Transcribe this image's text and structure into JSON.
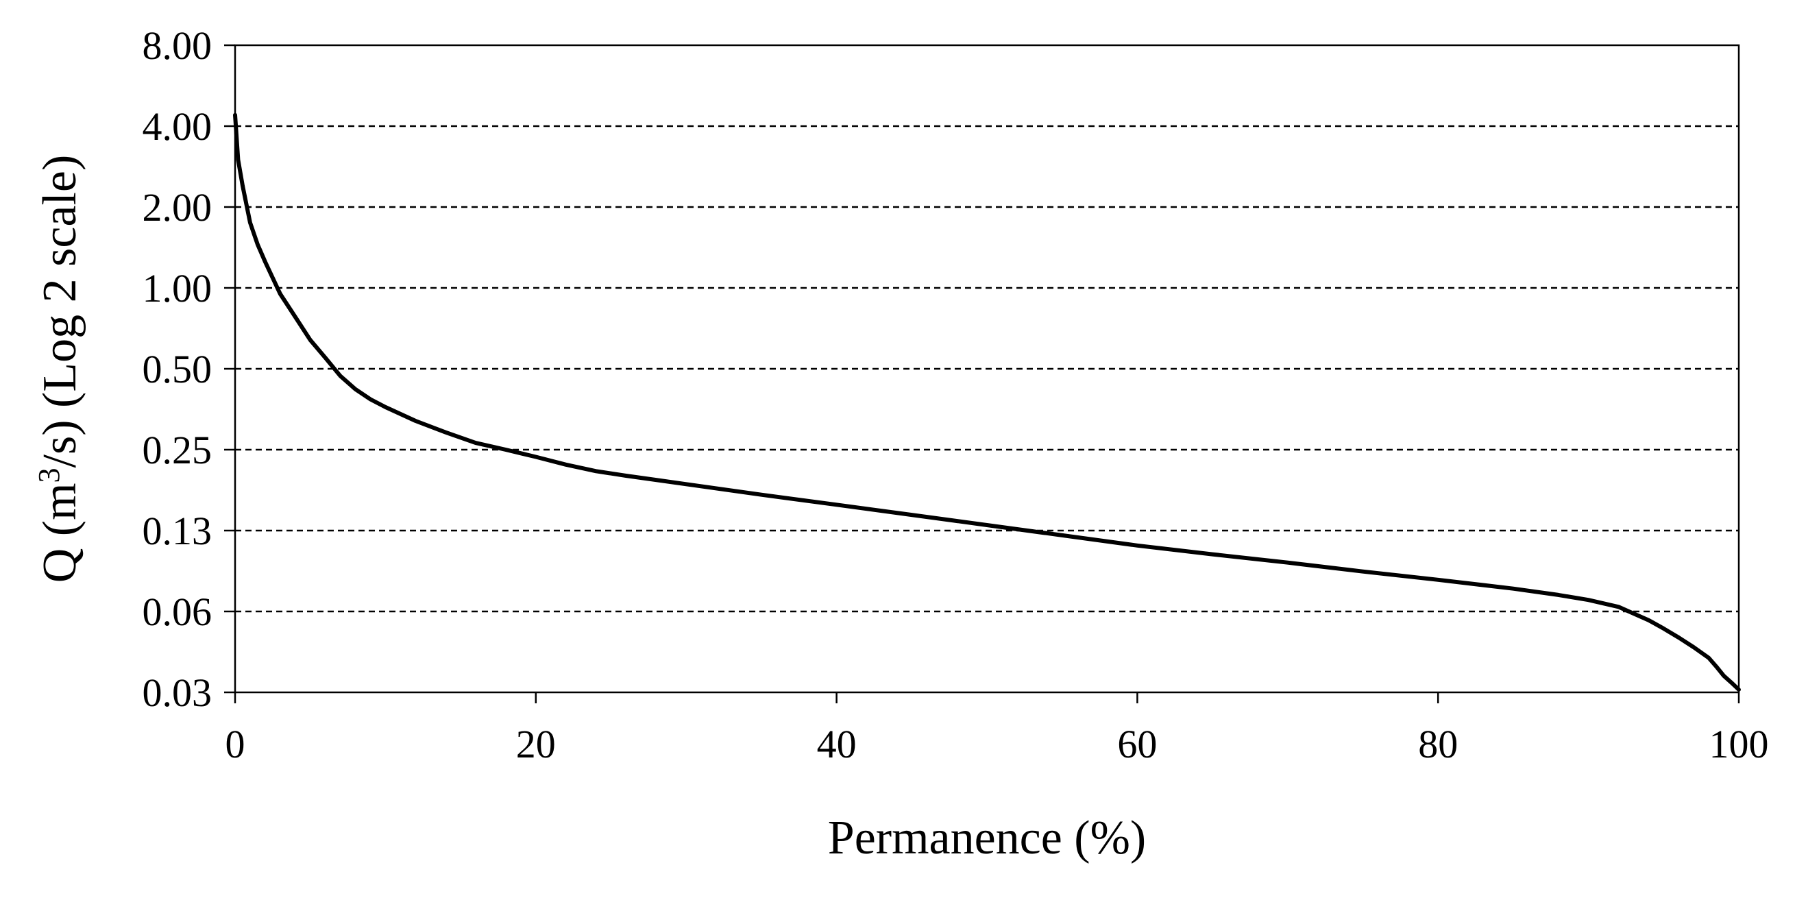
{
  "chart_data": {
    "type": "line",
    "xlabel": "Permanence (%)",
    "ylabel_parts": {
      "before": "Q (m",
      "sup": "3",
      "after": "/s) (Log 2 scale)"
    },
    "y_scale": "log2",
    "xlim": [
      0,
      100
    ],
    "ylim": [
      0.03,
      8.0
    ],
    "x_ticks": [
      0,
      20,
      40,
      60,
      80,
      100
    ],
    "y_ticks": [
      {
        "value": 8,
        "label": "8.00"
      },
      {
        "value": 4,
        "label": "4.00"
      },
      {
        "value": 2,
        "label": "2.00"
      },
      {
        "value": 1,
        "label": "1.00"
      },
      {
        "value": 0.5,
        "label": "0.50"
      },
      {
        "value": 0.25,
        "label": "0.25"
      },
      {
        "value": 0.125,
        "label": "0.13"
      },
      {
        "value": 0.0625,
        "label": "0.06"
      },
      {
        "value": 0.03125,
        "label": "0.03"
      }
    ],
    "grid": "horizontal-dashed",
    "legend": "none",
    "series": [
      {
        "x": [
          0,
          0.2,
          0.5,
          1,
          1.5,
          2,
          3,
          4,
          5,
          6,
          7,
          8,
          9,
          10,
          12,
          14,
          16,
          18,
          20,
          22,
          24,
          26,
          28,
          30,
          35,
          40,
          45,
          50,
          55,
          60,
          65,
          70,
          75,
          80,
          85,
          88,
          90,
          92,
          94,
          95,
          96,
          97,
          98,
          98.5,
          99,
          99.5,
          100
        ],
        "y": [
          4.4,
          3.0,
          2.4,
          1.75,
          1.45,
          1.25,
          0.95,
          0.78,
          0.64,
          0.55,
          0.47,
          0.42,
          0.385,
          0.36,
          0.32,
          0.29,
          0.265,
          0.25,
          0.235,
          0.22,
          0.208,
          0.2,
          0.193,
          0.186,
          0.17,
          0.156,
          0.143,
          0.131,
          0.12,
          0.11,
          0.102,
          0.095,
          0.088,
          0.082,
          0.076,
          0.072,
          0.069,
          0.065,
          0.058,
          0.054,
          0.05,
          0.046,
          0.042,
          0.039,
          0.036,
          0.034,
          0.032
        ]
      }
    ]
  }
}
